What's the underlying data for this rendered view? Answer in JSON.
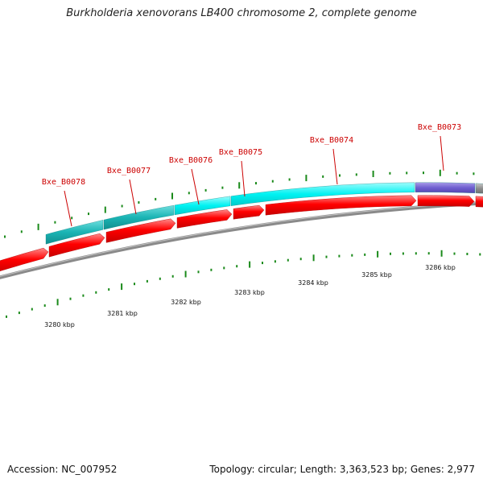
{
  "title": "Burkholderia xenovorans LB400 chromosome 2, complete genome",
  "footer": {
    "accession": "Accession: NC_007952",
    "summary": "Topology: circular; Length: 3,363,523 bp; Genes: 2,977"
  },
  "colors": {
    "backbone": "#8a8a8a",
    "cds_forward": "#ff0000",
    "feature_dark_cyan": "#19b6b6",
    "feature_cyan": "#00f0f0",
    "feature_purple": "#7060d0",
    "feature_grey": "#909090",
    "tick": "#1a8a1a",
    "gene_label": "#cc0000"
  },
  "gene_labels": [
    "Bxe_B0078",
    "Bxe_B0077",
    "Bxe_B0076",
    "Bxe_B0075",
    "Bxe_B0074",
    "Bxe_B0073"
  ],
  "scale_labels": [
    "3280 kbp",
    "3281 kbp",
    "3282 kbp",
    "3283 kbp",
    "3284 kbp",
    "3285 kbp",
    "3286 kbp"
  ]
}
